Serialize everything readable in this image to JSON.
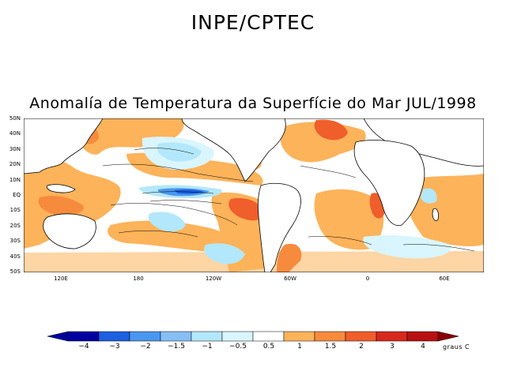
{
  "header": {
    "agency": "INPE/CPTEC"
  },
  "map": {
    "title": "Anomalía de Temperatura da Superfície do Mar JUL/1998",
    "lat_labels": [
      "50N",
      "40N",
      "30N",
      "20N",
      "10N",
      "EQ",
      "10S",
      "20S",
      "30S",
      "40S",
      "50S"
    ],
    "lon_labels": [
      "120E",
      "180",
      "120W",
      "60W",
      "0",
      "60E"
    ]
  },
  "colorbar": {
    "labels": [
      "-4",
      "-3",
      "-2",
      "-1.5",
      "-1",
      "-0.5",
      "0.5",
      "1",
      "1.5",
      "2",
      "3",
      "4"
    ],
    "units": "graus C",
    "colors": {
      "neg_4": "#0000a0",
      "neg_3": "#1c5fe0",
      "neg_2": "#4a97f0",
      "neg_1_5": "#86bff5",
      "neg_1": "#b3e7fb",
      "neg_0_5": "#d9f5fd",
      "neutral": "#ffffff",
      "pos_0_5": "#fdb35a",
      "pos_1": "#f78b3d",
      "pos_1_5": "#ef5e2b",
      "pos_2": "#d6281c",
      "pos_3": "#b81010",
      "pos_4": "#8a0000"
    }
  }
}
